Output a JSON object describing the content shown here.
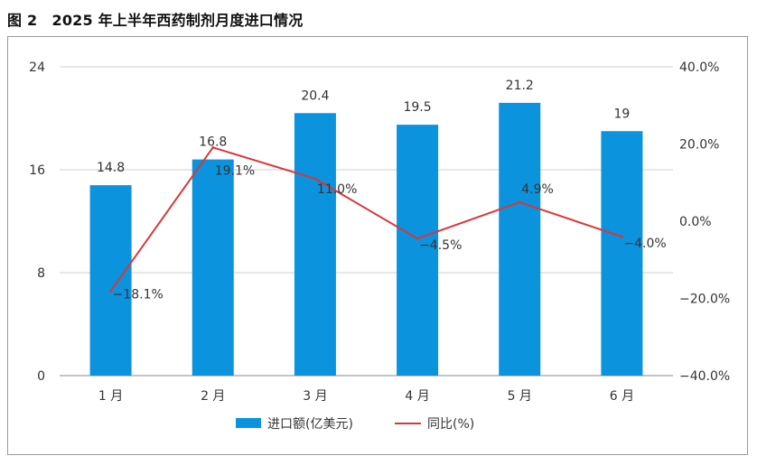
{
  "figure_title": "图 2　2025 年上半年西药制剂月度进口情况",
  "colors": {
    "bar": "#0b93dd",
    "line": "#d8373a",
    "grid": "#cfcfcf",
    "axis": "#888888"
  },
  "chart_data": {
    "type": "bar",
    "title": "2025 年上半年西药制剂月度进口情况",
    "categories": [
      "1 月",
      "2 月",
      "3 月",
      "4 月",
      "5 月",
      "6 月"
    ],
    "series": [
      {
        "name": "进口额(亿美元)",
        "type": "bar",
        "axis": "left",
        "values": [
          14.8,
          16.8,
          20.4,
          19.5,
          21.2,
          19
        ],
        "labels": [
          "14.8",
          "16.8",
          "20.4",
          "19.5",
          "21.2",
          "19"
        ]
      },
      {
        "name": "同比(%)",
        "type": "line",
        "axis": "right",
        "values": [
          -18.1,
          19.1,
          11.0,
          -4.5,
          4.9,
          -4.0
        ],
        "labels": [
          "−18.1%",
          "19.1%",
          "11.0%",
          "−4.5%",
          "4.9%",
          "−4.0%"
        ]
      }
    ],
    "y_left": {
      "ticks": [
        0,
        8,
        16,
        24
      ],
      "tick_labels": [
        "0",
        "8",
        "16",
        "24"
      ],
      "range": [
        0,
        24
      ]
    },
    "y_right": {
      "ticks": [
        -40,
        -20,
        0,
        20,
        40
      ],
      "tick_labels": [
        "−40.0%",
        "−20.0%",
        "0.0%",
        "20.0%",
        "40.0%"
      ],
      "range": [
        -40,
        40
      ]
    },
    "grid": true,
    "legend_position": "bottom-center"
  }
}
